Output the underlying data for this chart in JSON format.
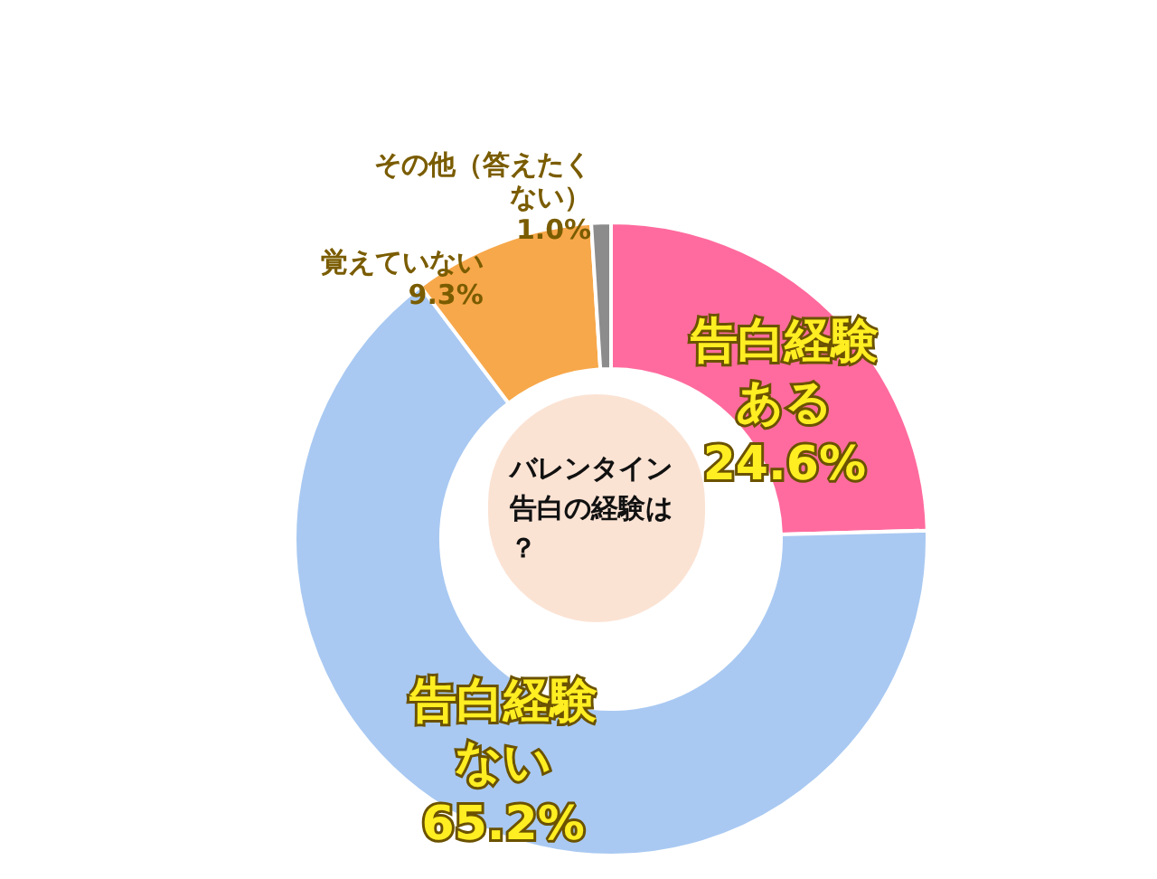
{
  "chart_data": {
    "type": "donut",
    "title": "バレンタイン告白の経験は？",
    "categories": [
      "告白経験ある",
      "告白経験ない",
      "覚えていない",
      "その他（答えたくない）"
    ],
    "values": [
      24.6,
      65.2,
      9.3,
      1.0
    ],
    "colors": [
      "#ff6b9e",
      "#a9c9f2",
      "#f7a84a",
      "#8c8c8c"
    ],
    "value_labels": [
      "24.6%",
      "65.2%",
      "9.3%",
      "1.0%"
    ],
    "legend": false
  }
}
